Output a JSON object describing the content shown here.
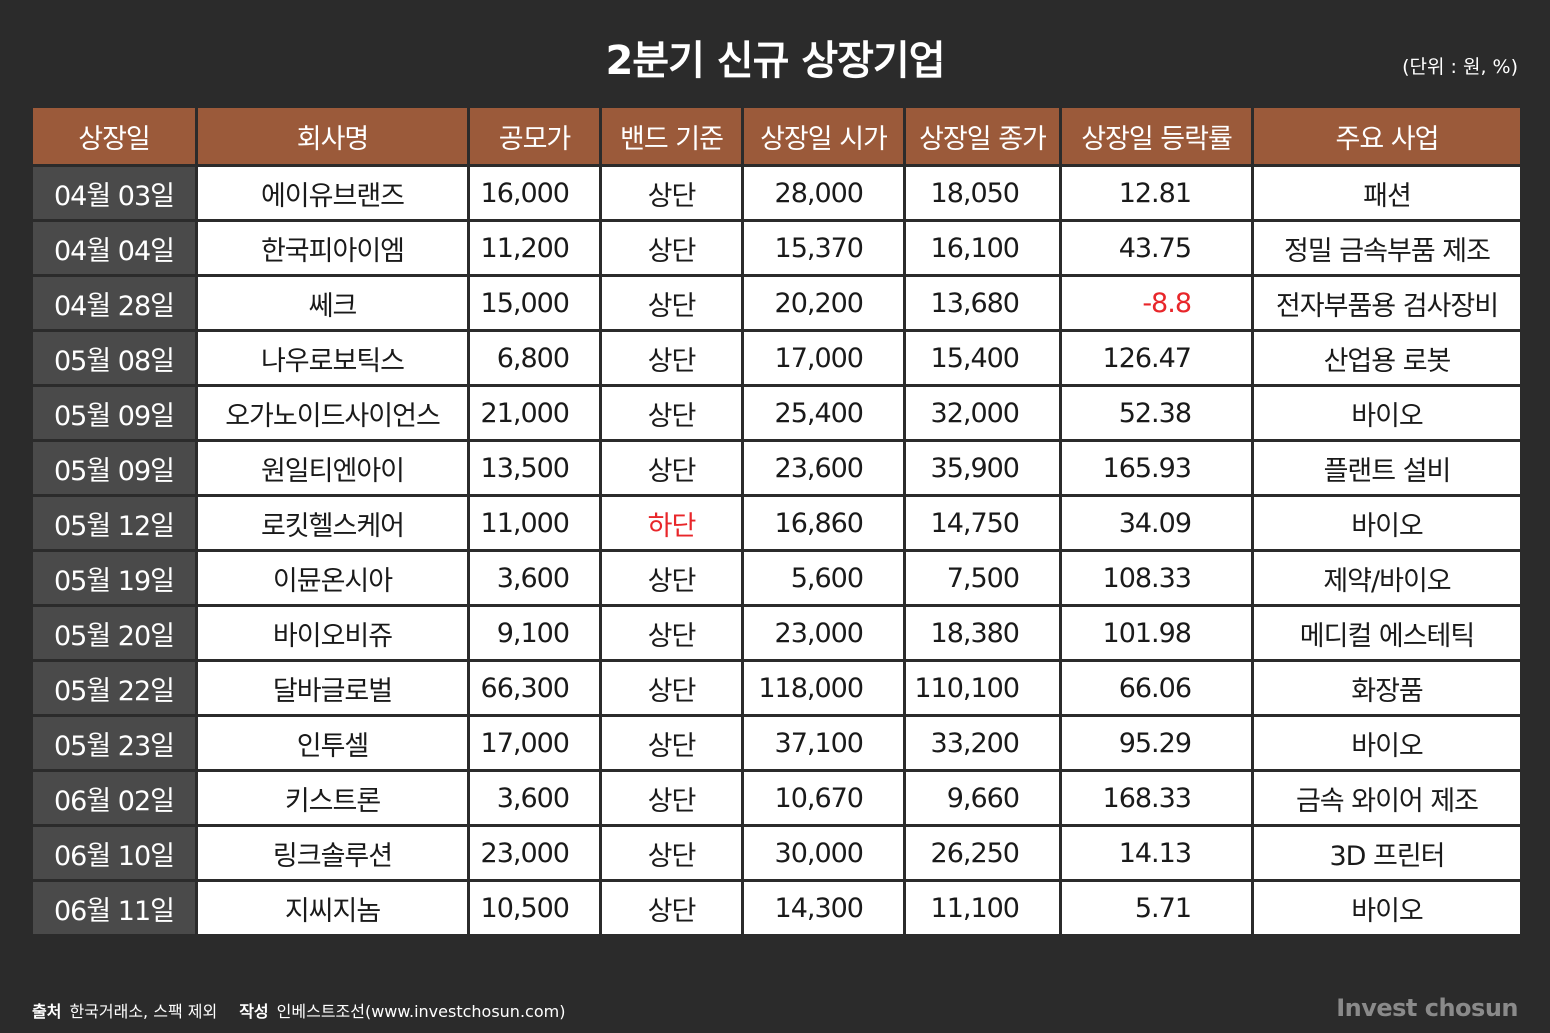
{
  "title": "2분기 신규 상장기업",
  "unit": "(단위 : 원, %)",
  "columns": [
    "상장일",
    "회사명",
    "공모가",
    "밴드 기준",
    "상장일 시가",
    "상장일 종가",
    "상장일 등락률",
    "주요 사업"
  ],
  "rows": [
    {
      "date": "04월 03일",
      "company": "에이유브랜즈",
      "offer": "16,000",
      "band": "상단",
      "open": "28,000",
      "close": "18,050",
      "change": "12.81",
      "business": "패션"
    },
    {
      "date": "04월 04일",
      "company": "한국피아이엠",
      "offer": "11,200",
      "band": "상단",
      "open": "15,370",
      "close": "16,100",
      "change": "43.75",
      "business": "정밀 금속부품 제조"
    },
    {
      "date": "04월 28일",
      "company": "쎄크",
      "offer": "15,000",
      "band": "상단",
      "open": "20,200",
      "close": "13,680",
      "change": "-8.8",
      "business": "전자부품용 검사장비"
    },
    {
      "date": "05월 08일",
      "company": "나우로보틱스",
      "offer": "6,800",
      "band": "상단",
      "open": "17,000",
      "close": "15,400",
      "change": "126.47",
      "business": "산업용 로봇"
    },
    {
      "date": "05월 09일",
      "company": "오가노이드사이언스",
      "offer": "21,000",
      "band": "상단",
      "open": "25,400",
      "close": "32,000",
      "change": "52.38",
      "business": "바이오"
    },
    {
      "date": "05월 09일",
      "company": "원일티엔아이",
      "offer": "13,500",
      "band": "상단",
      "open": "23,600",
      "close": "35,900",
      "change": "165.93",
      "business": "플랜트 설비"
    },
    {
      "date": "05월 12일",
      "company": "로킷헬스케어",
      "offer": "11,000",
      "band": "하단",
      "open": "16,860",
      "close": "14,750",
      "change": "34.09",
      "business": "바이오"
    },
    {
      "date": "05월 19일",
      "company": "이뮨온시아",
      "offer": "3,600",
      "band": "상단",
      "open": "5,600",
      "close": "7,500",
      "change": "108.33",
      "business": "제약/바이오"
    },
    {
      "date": "05월 20일",
      "company": "바이오비쥬",
      "offer": "9,100",
      "band": "상단",
      "open": "23,000",
      "close": "18,380",
      "change": "101.98",
      "business": "메디컬 에스테틱"
    },
    {
      "date": "05월 22일",
      "company": "달바글로벌",
      "offer": "66,300",
      "band": "상단",
      "open": "118,000",
      "close": "110,100",
      "change": "66.06",
      "business": "화장품"
    },
    {
      "date": "05월 23일",
      "company": "인투셀",
      "offer": "17,000",
      "band": "상단",
      "open": "37,100",
      "close": "33,200",
      "change": "95.29",
      "business": "바이오"
    },
    {
      "date": "06월 02일",
      "company": "키스트론",
      "offer": "3,600",
      "band": "상단",
      "open": "10,670",
      "close": "9,660",
      "change": "168.33",
      "business": "금속 와이어 제조"
    },
    {
      "date": "06월 10일",
      "company": "링크솔루션",
      "offer": "23,000",
      "band": "상단",
      "open": "30,000",
      "close": "26,250",
      "change": "14.13",
      "business": "3D 프린터"
    },
    {
      "date": "06월 11일",
      "company": "지씨지놈",
      "offer": "10,500",
      "band": "상단",
      "open": "14,300",
      "close": "11,100",
      "change": "5.71",
      "business": "바이오"
    }
  ],
  "footer": {
    "source_label": "출처",
    "source_text": "한국거래소, 스팩 제외",
    "author_label": "작성",
    "author_text": "인베스트조선(www.investchosun.com)"
  },
  "logo": "Invest chosun",
  "colors": {
    "background": "#2b2b2b",
    "header": "#9b5a3a",
    "date_cell": "#4a4a4a",
    "highlight_red": "#e8262a"
  }
}
